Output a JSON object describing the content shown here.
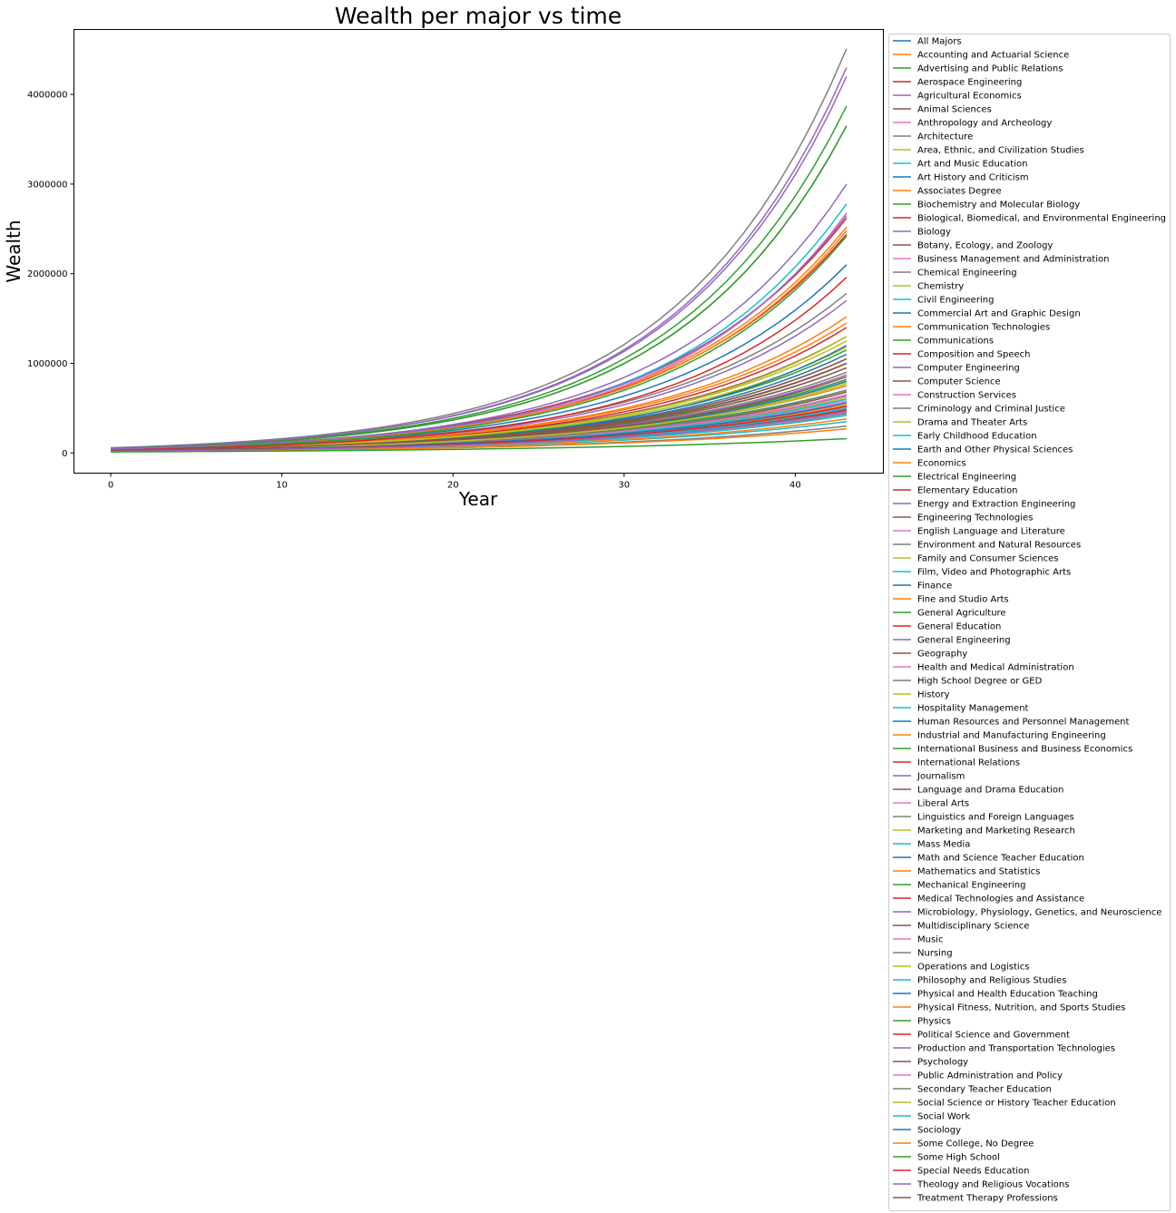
{
  "chart_data": {
    "type": "line",
    "title": "Wealth per major vs time",
    "xlabel": "Year",
    "ylabel": "Wealth",
    "xlim": [
      -2.15,
      45.15
    ],
    "ylim": [
      -225000,
      4725000
    ],
    "xticks": [
      0,
      10,
      20,
      30,
      40
    ],
    "yticks": [
      0,
      1000000,
      2000000,
      3000000,
      4000000
    ],
    "x_start": 0,
    "x_end": 43,
    "grid": false,
    "legend_position": "outside-right",
    "palette": [
      "#1f77b4",
      "#ff7f0e",
      "#2ca02c",
      "#d62728",
      "#9467bd",
      "#8c564b",
      "#e377c2",
      "#7f7f7f",
      "#bcbd22",
      "#17becf"
    ],
    "series": [
      {
        "name": "All Majors",
        "start": 30000,
        "end": 700000
      },
      {
        "name": "Accounting and Actuarial Science",
        "start": 45000,
        "end": 2520000
      },
      {
        "name": "Advertising and Public Relations",
        "start": 30000,
        "end": 700000
      },
      {
        "name": "Aerospace Engineering",
        "start": 48000,
        "end": 2620000
      },
      {
        "name": "Agricultural Economics",
        "start": 30000,
        "end": 600000
      },
      {
        "name": "Animal Sciences",
        "start": 22000,
        "end": 490000
      },
      {
        "name": "Anthropology and Archeology",
        "start": 22000,
        "end": 470000
      },
      {
        "name": "Architecture",
        "start": 30000,
        "end": 1000000
      },
      {
        "name": "Area, Ethnic, and Civilization Studies",
        "start": 25000,
        "end": 620000
      },
      {
        "name": "Art and Music Education",
        "start": 22000,
        "end": 520000
      },
      {
        "name": "Art History and Criticism",
        "start": 20000,
        "end": 440000
      },
      {
        "name": "Associates Degree",
        "start": 18000,
        "end": 450000
      },
      {
        "name": "Biochemistry and Molecular Biology",
        "start": 30000,
        "end": 820000
      },
      {
        "name": "Biological, Biomedical, and Environmental Engineering",
        "start": 45000,
        "end": 2440000
      },
      {
        "name": "Biology",
        "start": 28000,
        "end": 870000
      },
      {
        "name": "Botany, Ecology, and Zoology",
        "start": 25000,
        "end": 680000
      },
      {
        "name": "Business Management and Administration",
        "start": 30000,
        "end": 950000
      },
      {
        "name": "Chemical Engineering",
        "start": 58000,
        "end": 4510000
      },
      {
        "name": "Chemistry",
        "start": 35000,
        "end": 1180000
      },
      {
        "name": "Civil Engineering",
        "start": 42000,
        "end": 2780000
      },
      {
        "name": "Commercial Art and Graphic Design",
        "start": 22000,
        "end": 560000
      },
      {
        "name": "Communication Technologies",
        "start": 22000,
        "end": 540000
      },
      {
        "name": "Communications",
        "start": 25000,
        "end": 650000
      },
      {
        "name": "Composition and Speech",
        "start": 22000,
        "end": 520000
      },
      {
        "name": "Computer Engineering",
        "start": 55000,
        "end": 4200000
      },
      {
        "name": "Computer Science",
        "start": 50000,
        "end": 3650000
      },
      {
        "name": "Construction Services",
        "start": 40000,
        "end": 2680000
      },
      {
        "name": "Criminology and Criminal Justice",
        "start": 28000,
        "end": 900000
      },
      {
        "name": "Drama and Theater Arts",
        "start": 22000,
        "end": 480000
      },
      {
        "name": "Early Childhood Education",
        "start": 18000,
        "end": 350000
      },
      {
        "name": "Earth and Other Physical Sciences",
        "start": 30000,
        "end": 1100000
      },
      {
        "name": "Economics",
        "start": 38000,
        "end": 1520000
      },
      {
        "name": "Electrical Engineering",
        "start": 52000,
        "end": 3870000
      },
      {
        "name": "Elementary Education",
        "start": 20000,
        "end": 480000
      },
      {
        "name": "Energy and Extraction Engineering",
        "start": 55000,
        "end": 4300000
      },
      {
        "name": "Engineering Technologies",
        "start": 35000,
        "end": 1300000
      },
      {
        "name": "English Language and Literature",
        "start": 25000,
        "end": 580000
      },
      {
        "name": "Environment and Natural Resources",
        "start": 28000,
        "end": 750000
      },
      {
        "name": "Family and Consumer Sciences",
        "start": 20000,
        "end": 420000
      },
      {
        "name": "Film, Video and Photographic Arts",
        "start": 22000,
        "end": 460000
      },
      {
        "name": "Finance",
        "start": 40000,
        "end": 2100000
      },
      {
        "name": "Fine and Studio Arts",
        "start": 18000,
        "end": 380000
      },
      {
        "name": "General Agriculture",
        "start": 28000,
        "end": 1000000
      },
      {
        "name": "General Education",
        "start": 22000,
        "end": 560000
      },
      {
        "name": "General Engineering",
        "start": 45000,
        "end": 2650000
      },
      {
        "name": "Geography",
        "start": 28000,
        "end": 950000
      },
      {
        "name": "Health and Medical Administration",
        "start": 25000,
        "end": 640000
      },
      {
        "name": "High School Degree or GED",
        "start": 15000,
        "end": 300000
      },
      {
        "name": "History",
        "start": 28000,
        "end": 780000
      },
      {
        "name": "Hospitality Management",
        "start": 22000,
        "end": 500000
      },
      {
        "name": "Human Resources and Personnel Management",
        "start": 30000,
        "end": 1000000
      },
      {
        "name": "Industrial and Manufacturing Engineering",
        "start": 42000,
        "end": 2480000
      },
      {
        "name": "International Business and Business Economics",
        "start": 32000,
        "end": 1150000
      },
      {
        "name": "International Relations",
        "start": 35000,
        "end": 1400000
      },
      {
        "name": "Journalism",
        "start": 25000,
        "end": 640000
      },
      {
        "name": "Language and Drama Education",
        "start": 22000,
        "end": 520000
      },
      {
        "name": "Liberal Arts",
        "start": 20000,
        "end": 450000
      },
      {
        "name": "Linguistics and Foreign Languages",
        "start": 22000,
        "end": 560000
      },
      {
        "name": "Marketing and Marketing Research",
        "start": 32000,
        "end": 1300000
      },
      {
        "name": "Mass Media",
        "start": 22000,
        "end": 500000
      },
      {
        "name": "Math and Science Teacher Education",
        "start": 28000,
        "end": 800000
      },
      {
        "name": "Mathematics and Statistics",
        "start": 38000,
        "end": 1450000
      },
      {
        "name": "Mechanical Engineering",
        "start": 50000,
        "end": 3650000
      },
      {
        "name": "Medical Technologies and Assistance",
        "start": 30000,
        "end": 1050000
      },
      {
        "name": "Microbiology, Physiology, Genetics, and Neuroscience",
        "start": 38000,
        "end": 1700000
      },
      {
        "name": "Multidisciplinary Science",
        "start": 30000,
        "end": 1000000
      },
      {
        "name": "Music",
        "start": 22000,
        "end": 520000
      },
      {
        "name": "Nursing",
        "start": 40000,
        "end": 1780000
      },
      {
        "name": "Operations and Logistics",
        "start": 35000,
        "end": 1250000
      },
      {
        "name": "Philosophy and Religious Studies",
        "start": 25000,
        "end": 600000
      },
      {
        "name": "Physical and Health Education Teaching",
        "start": 28000,
        "end": 1200000
      },
      {
        "name": "Physical Fitness, Nutrition, and Sports Studies",
        "start": 30000,
        "end": 750000
      },
      {
        "name": "Physics",
        "start": 40000,
        "end": 2420000
      },
      {
        "name": "Political Science and Government",
        "start": 35000,
        "end": 1960000
      },
      {
        "name": "Production and Transportation Technologies",
        "start": 45000,
        "end": 3000000
      },
      {
        "name": "Psychology",
        "start": 28000,
        "end": 850000
      },
      {
        "name": "Public Administration and Policy",
        "start": 25000,
        "end": 650000
      },
      {
        "name": "Secondary Teacher Education",
        "start": 25000,
        "end": 700000
      },
      {
        "name": "Social Science or History Teacher Education",
        "start": 28000,
        "end": 760000
      },
      {
        "name": "Social Work",
        "start": 20000,
        "end": 420000
      },
      {
        "name": "Sociology",
        "start": 25000,
        "end": 560000
      },
      {
        "name": "Some College, No Degree",
        "start": 15000,
        "end": 270000
      },
      {
        "name": "Some High School",
        "start": 12000,
        "end": 160000
      },
      {
        "name": "Special Needs Education",
        "start": 22000,
        "end": 520000
      },
      {
        "name": "Theology and Religious Vocations",
        "start": 20000,
        "end": 460000
      },
      {
        "name": "Treatment Therapy Professions",
        "start": 30000,
        "end": 1050000
      }
    ]
  }
}
